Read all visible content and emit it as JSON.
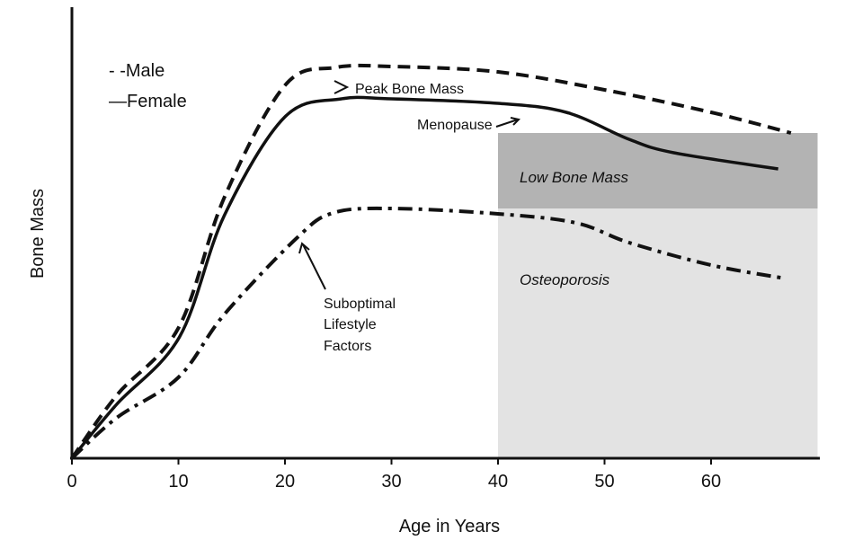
{
  "chart_data": {
    "type": "line",
    "title": "",
    "xlabel": "Age in Years",
    "ylabel": "Bone Mass",
    "xlim": [
      0,
      70
    ],
    "ylim": [
      0,
      100
    ],
    "xticks": [
      0,
      10,
      20,
      30,
      40,
      50,
      60
    ],
    "xtick_labels": [
      "0",
      "10",
      "20",
      "30",
      "40",
      "50",
      "60"
    ],
    "grid": false,
    "legend": {
      "placement": "top-left",
      "entries": [
        {
          "name": "Male",
          "label": "- -Male",
          "style": "dashed"
        },
        {
          "name": "Female",
          "label": "—Female",
          "style": "solid"
        }
      ]
    },
    "regions": [
      {
        "label": "Low Bone Mass",
        "x": [
          40,
          70
        ],
        "y": [
          55.6,
          72.4
        ],
        "color": "#b3b3b3"
      },
      {
        "label": "Osteoporosis",
        "x": [
          40,
          70
        ],
        "y": [
          0,
          55.6
        ],
        "color": "#e3e3e3"
      }
    ],
    "series": [
      {
        "name": "Male",
        "style": "dashed",
        "x": [
          0,
          4.2,
          10,
          14.3,
          20,
          24.8,
          30,
          40,
          50,
          60,
          67.5
        ],
        "y": [
          0,
          14,
          29,
          58,
          83,
          87,
          87.2,
          86,
          82,
          77,
          72.4
        ]
      },
      {
        "name": "Female",
        "style": "solid",
        "x": [
          0,
          4.2,
          10.1,
          14.3,
          20,
          25.3,
          30,
          40,
          46.4,
          52.3,
          56.5,
          66.3
        ],
        "y": [
          0,
          12,
          27,
          54,
          76,
          80,
          80,
          79,
          77,
          71,
          68,
          64.4
        ]
      },
      {
        "name": "Suboptimal Lifestyle Factors",
        "style": "dashdot",
        "x": [
          0,
          4.2,
          10,
          14.3,
          21.1,
          24.5,
          30,
          40,
          47.3,
          52.3,
          60,
          67
        ],
        "y": [
          0,
          9,
          18,
          32,
          49,
          54.6,
          55.6,
          54.4,
          52.4,
          48,
          43,
          40
        ]
      }
    ],
    "annotations": [
      {
        "text": "Peak Bone Mass",
        "x": 26,
        "y": 82.5
      },
      {
        "text": "Menopause",
        "x": 46,
        "y": 74
      },
      {
        "text": "Suboptimal Lifestyle Factors",
        "lines": [
          "Suboptimal",
          "Lifestyle",
          "Factors"
        ],
        "x": 22,
        "y": 49
      }
    ]
  }
}
